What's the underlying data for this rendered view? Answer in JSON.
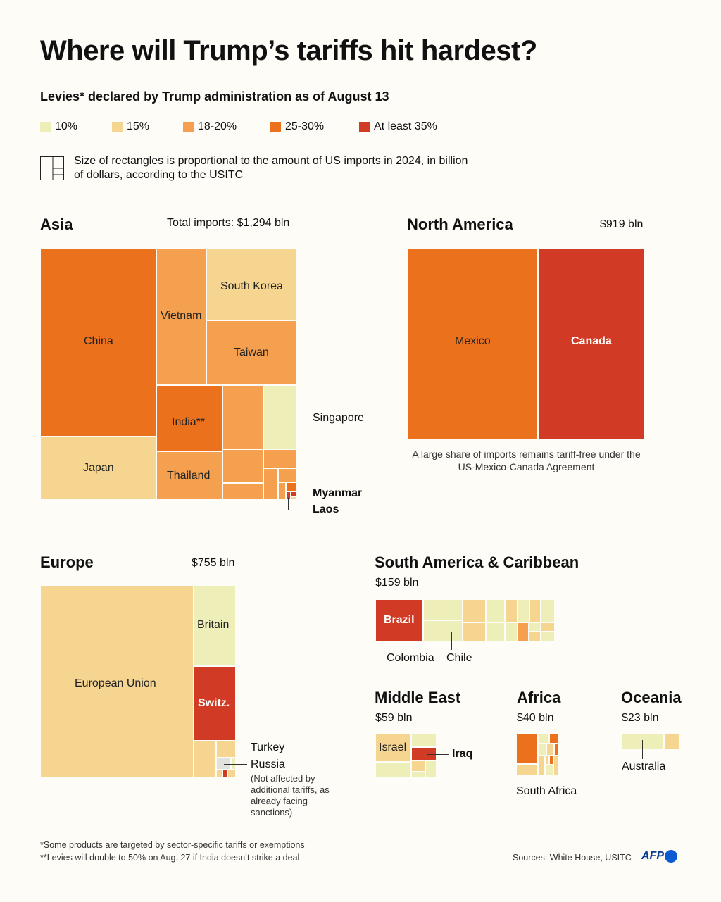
{
  "title": "Where will Trump’s tariffs hit hardest?",
  "subtitle": "Levies* declared by Trump administration as of August 13",
  "legend": [
    {
      "label": "10%",
      "color": "#eeefb8"
    },
    {
      "label": "15%",
      "color": "#f6d590"
    },
    {
      "label": "18-20%",
      "color": "#f4a04e"
    },
    {
      "label": "25-30%",
      "color": "#ec711c"
    },
    {
      "label": "At least 35%",
      "color": "#d13a24"
    }
  ],
  "size_note": "Size of rectangles is proportional to the amount of US imports in 2024, in billion of dollars, according to the USITC",
  "chart_data": {
    "type": "treemap",
    "title": "Where will Trump’s tariffs hit hardest?",
    "value_unit": "US imports 2024, billion dollars",
    "regions": [
      {
        "name": "Asia",
        "total": "Total imports: $1,294 bln",
        "countries": [
          {
            "name": "China",
            "tariff": "25-30%"
          },
          {
            "name": "Japan",
            "tariff": "15%"
          },
          {
            "name": "Vietnam",
            "tariff": "18-20%"
          },
          {
            "name": "South Korea",
            "tariff": "15%"
          },
          {
            "name": "Taiwan",
            "tariff": "18-20%"
          },
          {
            "name": "India**",
            "tariff": "25-30%"
          },
          {
            "name": "Thailand",
            "tariff": "18-20%"
          },
          {
            "name": "Singapore",
            "tariff": "10%"
          },
          {
            "name": "Myanmar",
            "tariff": "At least 35%"
          },
          {
            "name": "Laos",
            "tariff": "At least 35%"
          }
        ]
      },
      {
        "name": "North America",
        "total": "$919 bln",
        "countries": [
          {
            "name": "Mexico",
            "tariff": "25-30%"
          },
          {
            "name": "Canada",
            "tariff": "At least 35%"
          }
        ],
        "annotation": "A large share of imports remains tariff-free under the US-Mexico-Canada Agreement"
      },
      {
        "name": "Europe",
        "total": "$755 bln",
        "countries": [
          {
            "name": "European Union",
            "tariff": "15%"
          },
          {
            "name": "Britain",
            "tariff": "10%"
          },
          {
            "name": "Switz.",
            "tariff": "At least 35%"
          },
          {
            "name": "Turkey",
            "tariff": "15%"
          },
          {
            "name": "Russia",
            "tariff": "none"
          }
        ],
        "annotation": "(Not affected by additional tariffs, as already facing sanctions)"
      },
      {
        "name": "South America & Caribbean",
        "total": "$159 bln",
        "countries": [
          {
            "name": "Brazil",
            "tariff": "At least 35%"
          },
          {
            "name": "Colombia",
            "tariff": "10%"
          },
          {
            "name": "Chile",
            "tariff": "10%"
          }
        ]
      },
      {
        "name": "Middle East",
        "total": "$59 bln",
        "countries": [
          {
            "name": "Israel",
            "tariff": "15%"
          },
          {
            "name": "Iraq",
            "tariff": "At least 35%"
          }
        ]
      },
      {
        "name": "Africa",
        "total": "$40 bln",
        "countries": [
          {
            "name": "South Africa",
            "tariff": "25-30%"
          }
        ]
      },
      {
        "name": "Oceania",
        "total": "$23 bln",
        "countries": [
          {
            "name": "Australia",
            "tariff": "10%"
          }
        ]
      }
    ]
  },
  "labels": {
    "china": "China",
    "japan": "Japan",
    "vietnam": "Vietnam",
    "south_korea": "South Korea",
    "taiwan": "Taiwan",
    "india": "India**",
    "thailand": "Thailand",
    "singapore": "Singapore",
    "myanmar": "Myanmar",
    "laos": "Laos",
    "mexico": "Mexico",
    "canada": "Canada",
    "eu": "European Union",
    "britain": "Britain",
    "switz": "Switz.",
    "turkey": "Turkey",
    "russia": "Russia",
    "russia_note": "(Not affected by additional tariffs, as already facing sanctions)",
    "na_note": "A large share of imports remains tariff-free under the US-Mexico-Canada Agreement",
    "brazil": "Brazil",
    "colombia": "Colombia",
    "chile": "Chile",
    "israel": "Israel",
    "iraq": "Iraq",
    "south_africa": "South Africa",
    "australia": "Australia"
  },
  "footnotes": [
    "*Some products are targeted by sector-specific tariffs or exemptions",
    "**Levies will double to 50% on Aug. 27 if India doesn’t strike a deal"
  ],
  "sources": "Sources: White House, USITC",
  "logo": "AFP"
}
